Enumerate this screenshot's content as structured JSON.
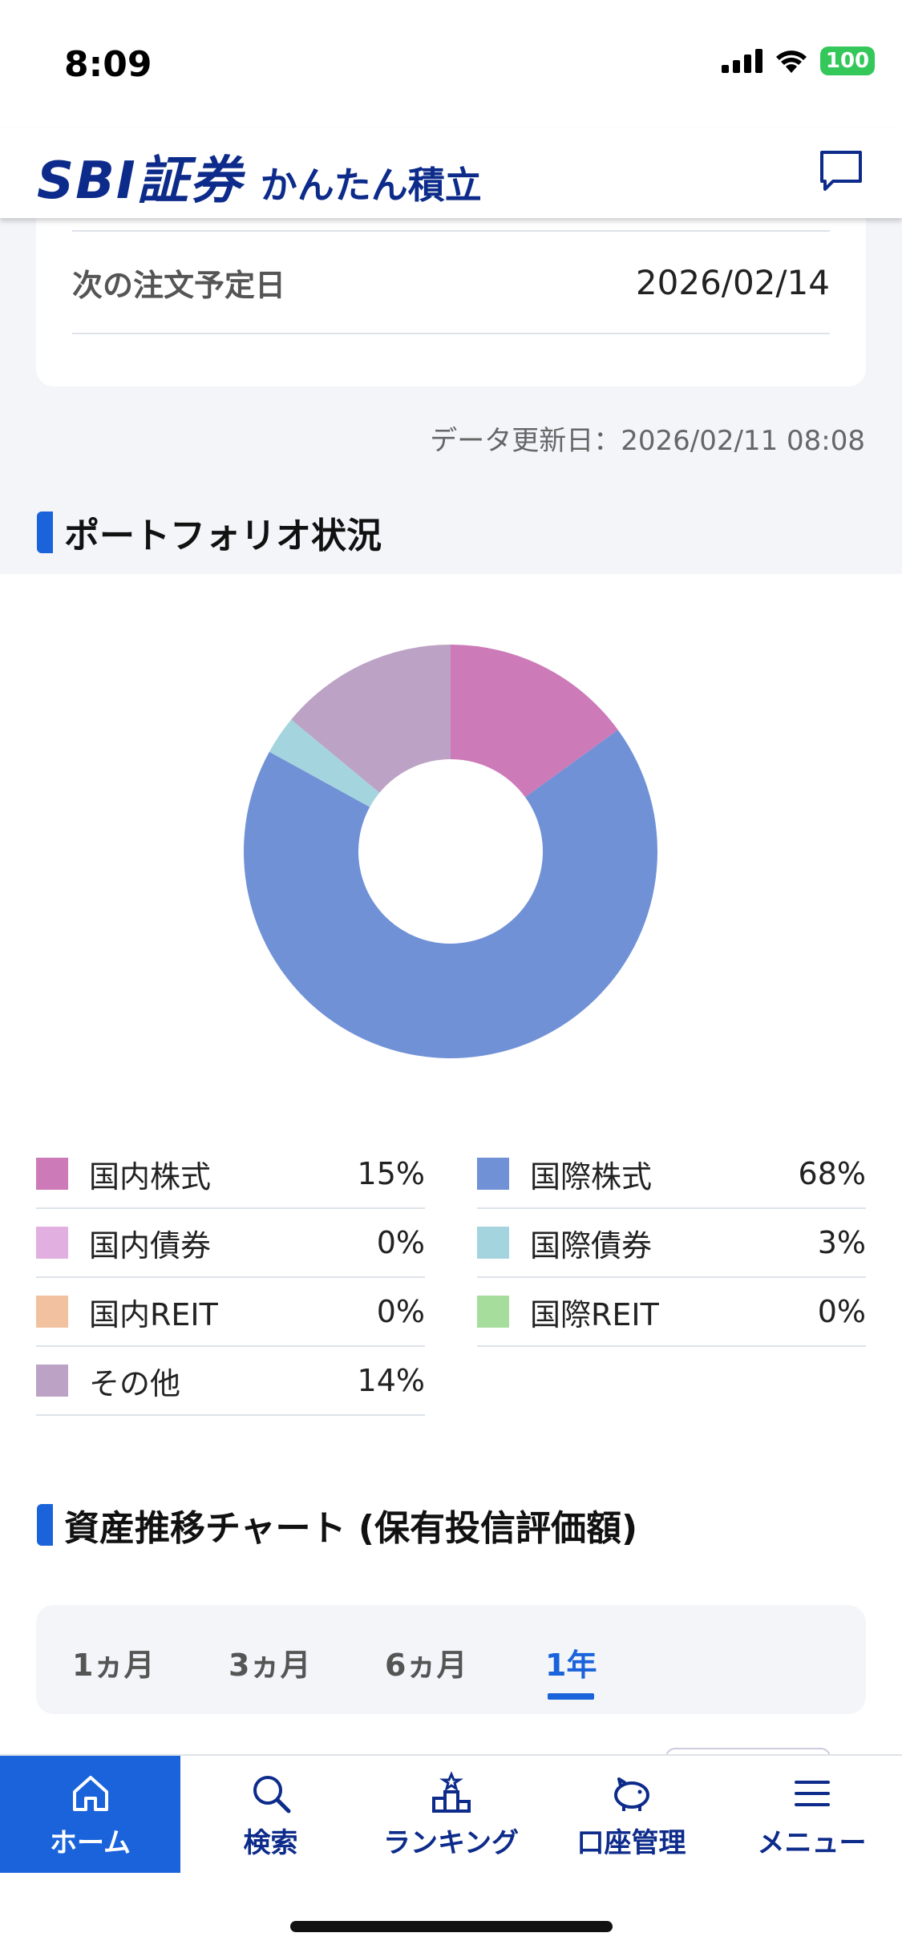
{
  "status": {
    "time": "8:09",
    "battery": "100"
  },
  "header": {
    "logo_main": "SBI証券",
    "logo_sub": "かんたん積立",
    "chat_icon": "chat-bubble-icon"
  },
  "order": {
    "label": "次の注文予定日",
    "date": "2026/02/14"
  },
  "updated": "データ更新日：2026/02/11 08:08",
  "portfolio": {
    "title": "ポートフォリオ状況",
    "legend": [
      {
        "name": "国内株式",
        "pct": "15",
        "color": "#cd7ab9"
      },
      {
        "name": "国際株式",
        "pct": "68",
        "color": "#7091d6"
      },
      {
        "name": "国内債券",
        "pct": "0",
        "color": "#e2b0e0"
      },
      {
        "name": "国際債券",
        "pct": "3",
        "color": "#a4d4de"
      },
      {
        "name": "国内REIT",
        "pct": "0",
        "color": "#f2c1a0"
      },
      {
        "name": "国際REIT",
        "pct": "0",
        "color": "#a6dd9c"
      },
      {
        "name": "その他",
        "pct": "14",
        "color": "#bca2c4"
      }
    ],
    "unit": "%"
  },
  "chart_data": {
    "type": "pie",
    "categories": [
      "国内株式",
      "国際株式",
      "国内債券",
      "国際債券",
      "国内REIT",
      "国際REIT",
      "その他"
    ],
    "values": [
      15,
      68,
      0,
      3,
      0,
      0,
      14
    ],
    "colors": [
      "#cd7ab9",
      "#7091d6",
      "#e2b0e0",
      "#a4d4de",
      "#f2c1a0",
      "#a6dd9c",
      "#bca2c4"
    ]
  },
  "asset_chart": {
    "title": "資産推移チャート (保有投信評価額)",
    "tabs": [
      "1ヵ月",
      "3ヵ月",
      "6ヵ月",
      "1年"
    ],
    "active_tab": "1年"
  },
  "nav": [
    {
      "label": "ホーム",
      "icon": "home-icon",
      "active": true
    },
    {
      "label": "検索",
      "icon": "search-icon",
      "active": false
    },
    {
      "label": "ランキング",
      "icon": "ranking-icon",
      "active": false
    },
    {
      "label": "口座管理",
      "icon": "piggy-bank-icon",
      "active": false
    },
    {
      "label": "メニュー",
      "icon": "menu-icon",
      "active": false
    }
  ]
}
